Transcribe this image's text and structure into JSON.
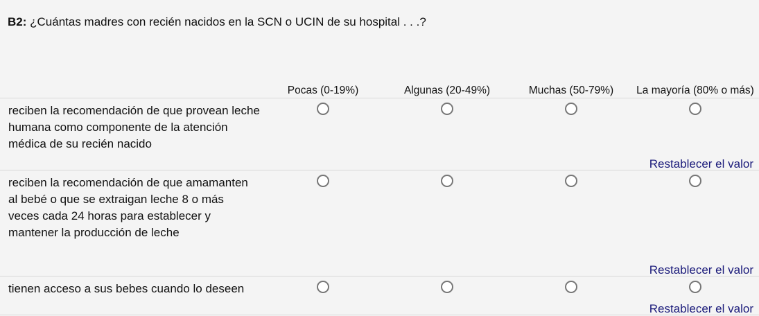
{
  "question": {
    "code": "B2:",
    "text": " ¿Cuántas madres con recién nacidos en la SCN o UCIN de su hospital . . .?"
  },
  "columns": [
    "Pocas (0-19%)",
    "Algunas (20-49%)",
    "Muchas (50-79%)",
    "La mayoría (80% o más)"
  ],
  "rows": [
    {
      "label": "reciben la recomendación de que provean leche humana como componente de la atención médica de su recién nacido",
      "selected": null,
      "reset": "Restablecer el valor"
    },
    {
      "label": "reciben la recomendación de que amamanten al bebé o que se extraigan leche 8 o más veces cada 24 horas para establecer y mantener la producción de leche",
      "selected": null,
      "reset": "Restablecer el valor"
    },
    {
      "label": "tienen acceso a sus bebes cuando lo deseen",
      "selected": null,
      "reset": "Restablecer el valor"
    }
  ]
}
